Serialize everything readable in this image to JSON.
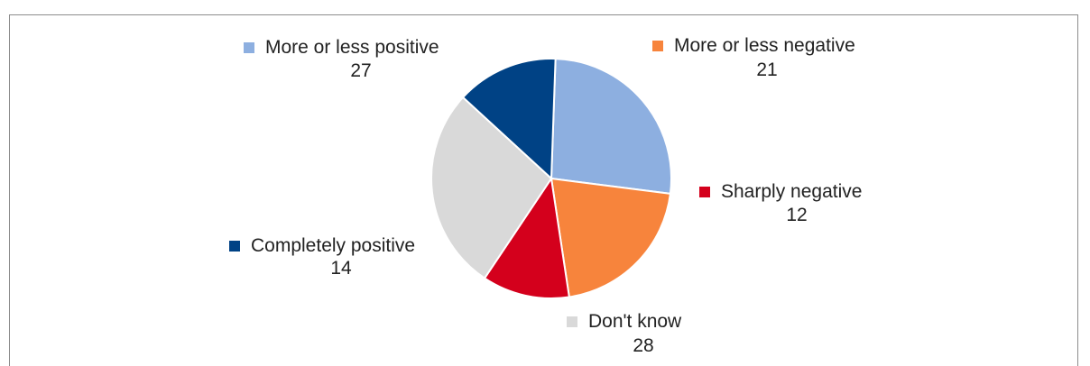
{
  "title": "",
  "chart_data": {
    "type": "pie",
    "title": "",
    "categories": [
      "More or less positive",
      "More or less negative",
      "Sharply negative",
      "Don't know",
      "Completely positive"
    ],
    "values": [
      27,
      21,
      12,
      28,
      14
    ],
    "colors": [
      "#8dafe0",
      "#f7843c",
      "#d4001c",
      "#d9d9d9",
      "#004285"
    ],
    "start_angle_deg": 2,
    "legend": "inline-labels"
  }
}
